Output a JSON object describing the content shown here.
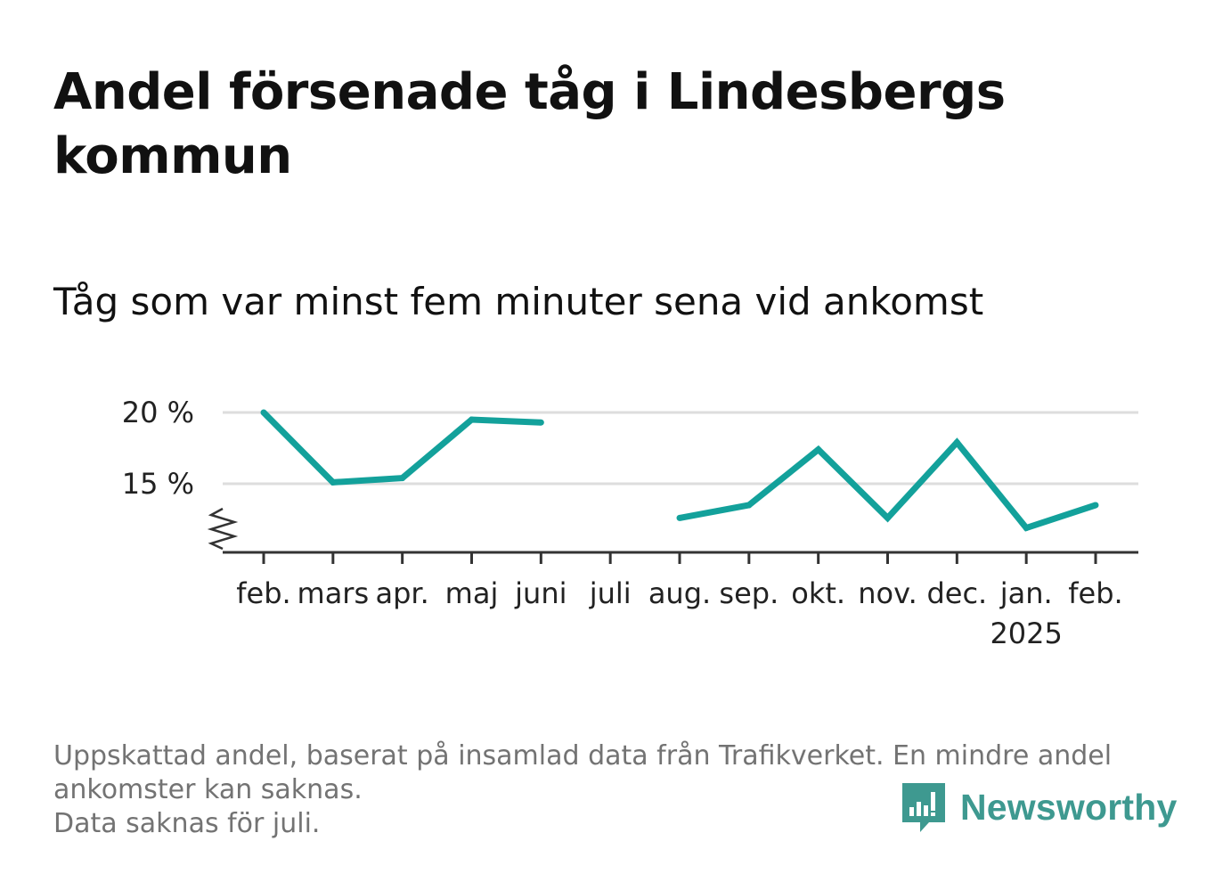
{
  "title": "Andel försenade tåg i Lindesbergs kommun",
  "subtitle": "Tåg som var minst fem minuter sena vid ankomst",
  "footer": {
    "line1": "Uppskattad andel, baserat på insamlad data från Trafikverket. En mindre andel ankomster kan saknas.",
    "line2": "Data saknas för juli."
  },
  "brand": {
    "name": "Newsworthy",
    "icon": "newsworthy-logo-icon",
    "color": "#3e9990"
  },
  "colors": {
    "line": "#13a19b",
    "grid": "#dddddd",
    "axis": "#333333"
  },
  "chart_data": {
    "type": "line",
    "title": "Andel försenade tåg i Lindesbergs kommun",
    "subtitle": "Tåg som var minst fem minuter sena vid ankomst",
    "categories": [
      "feb.",
      "mars",
      "apr.",
      "maj",
      "juni",
      "juli",
      "aug.",
      "sep.",
      "okt.",
      "nov.",
      "dec.",
      "jan.",
      "feb."
    ],
    "year_labels": [
      null,
      null,
      null,
      null,
      null,
      null,
      null,
      null,
      null,
      null,
      null,
      "2025",
      null
    ],
    "series": [
      {
        "values": [
          20.0,
          15.1,
          15.4,
          19.5,
          19.3,
          null,
          12.6,
          13.5,
          17.4,
          12.6,
          17.9,
          11.9,
          13.5
        ]
      }
    ],
    "y_ticks": [
      {
        "value": 15,
        "label": "15 %"
      },
      {
        "value": 20,
        "label": "20 %"
      }
    ],
    "ylim": [
      10.5,
      21.5
    ],
    "y_axis_break": true,
    "grid": true,
    "xlabel": "",
    "ylabel": ""
  }
}
